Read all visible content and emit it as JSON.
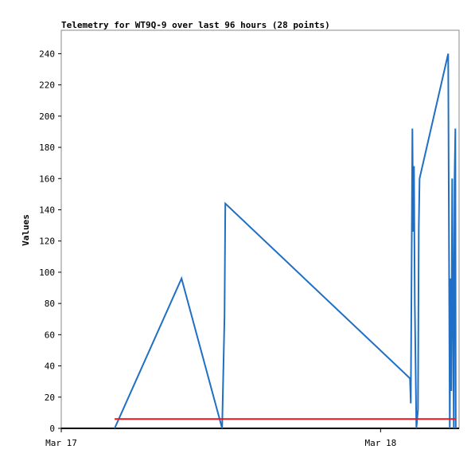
{
  "chart_data": {
    "type": "line",
    "title": "Telemetry for WT9Q-9 over last 96 hours (28 points)",
    "y_label": "Values",
    "xlim": [
      0,
      29.9
    ],
    "xticks": [
      {
        "value": 0,
        "label": "Mar 17"
      },
      {
        "value": 24,
        "label": "Mar 18"
      }
    ],
    "ylim": [
      0,
      255
    ],
    "yticks": [
      0,
      20,
      40,
      60,
      80,
      100,
      120,
      140,
      160,
      180,
      200,
      220,
      240
    ],
    "series": [
      {
        "color": "#1f6fc5",
        "x": [
          4.01,
          9.04,
          12.09,
          12.27,
          12.33,
          26.21,
          26.27,
          26.33,
          26.39,
          26.45,
          26.51,
          26.57,
          26.63,
          26.69,
          26.81,
          26.87,
          26.93,
          29.08,
          29.14,
          29.2,
          29.26,
          29.32,
          29.38,
          29.44,
          29.5,
          29.56,
          29.62,
          29.65
        ],
        "values": [
          0,
          96,
          0,
          72,
          144,
          32,
          16,
          104,
          192,
          126,
          168,
          80,
          40,
          0,
          12,
          128,
          160,
          240,
          120,
          0,
          96,
          24,
          160,
          80,
          0,
          160,
          192,
          0
        ]
      },
      {
        "color": "#e8171f",
        "x": [
          4.01,
          29.65
        ],
        "values": [
          6,
          6
        ]
      }
    ]
  }
}
